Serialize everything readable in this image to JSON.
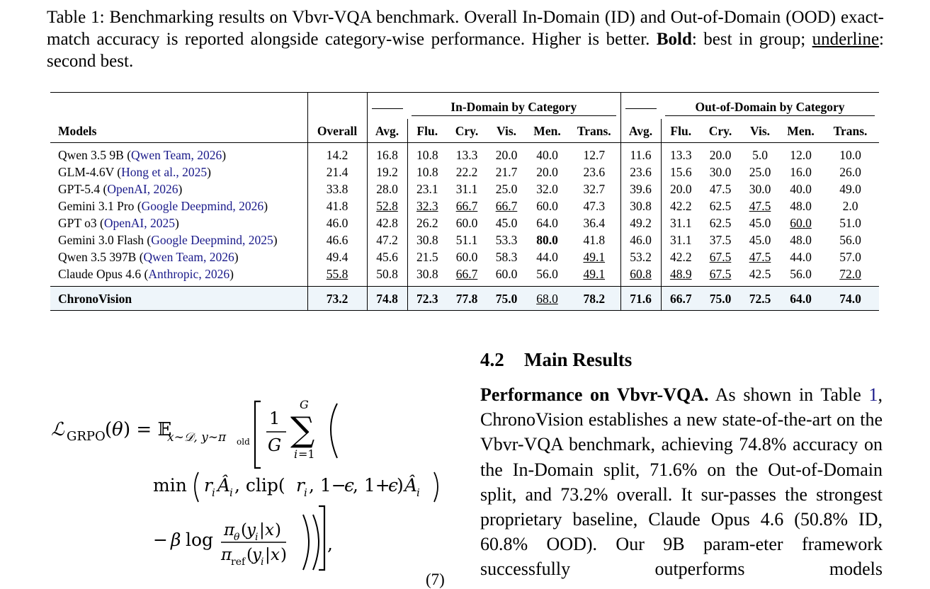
{
  "caption": {
    "lead": "Table 1: Benchmarking results on Vbvr-VQA benchmark. Overall In-Domain (ID) and Out-of-Domain (OOD) exact-match accuracy is reported alongside category-wise performance. Higher is better.",
    "bold_word": "Bold",
    "bold_desc": ": best in group;",
    "underline_word": "underline",
    "underline_desc": ": second best."
  },
  "table": {
    "group_headers": {
      "in_domain": "In-Domain by Category",
      "out_domain": "Out-of-Domain by Category"
    },
    "columns": [
      "Models",
      "Overall",
      "Avg.",
      "Flu.",
      "Cry.",
      "Vis.",
      "Men.",
      "Trans.",
      "Avg.",
      "Flu.",
      "Cry.",
      "Vis.",
      "Men.",
      "Trans."
    ],
    "rows": [
      {
        "name": "Qwen 3.5 9B",
        "cite": "Qwen Team, 2026",
        "values": [
          "14.2",
          "16.8",
          "10.8",
          "13.3",
          "20.0",
          "40.0",
          "12.7",
          "11.6",
          "13.3",
          "20.0",
          "5.0",
          "12.0",
          "10.0"
        ]
      },
      {
        "name": "GLM-4.6V",
        "cite": "Hong et al., 2025",
        "values": [
          "21.4",
          "19.2",
          "10.8",
          "22.2",
          "21.7",
          "20.0",
          "23.6",
          "23.6",
          "15.6",
          "30.0",
          "25.0",
          "16.0",
          "26.0"
        ]
      },
      {
        "name": "GPT-5.4",
        "cite": "OpenAI, 2026",
        "values": [
          "33.8",
          "28.0",
          "23.1",
          "31.1",
          "25.0",
          "32.0",
          "32.7",
          "39.6",
          "20.0",
          "47.5",
          "30.0",
          "40.0",
          "49.0"
        ]
      },
      {
        "name": "Gemini 3.1 Pro",
        "cite": "Google Deepmind, 2026",
        "values": [
          "41.8",
          "52.8",
          "32.3",
          "66.7",
          "66.7",
          "60.0",
          "47.3",
          "30.8",
          "42.2",
          "62.5",
          "47.5",
          "48.0",
          "2.0"
        ]
      },
      {
        "name": "GPT o3",
        "cite": "OpenAI, 2025",
        "values": [
          "46.0",
          "42.8",
          "26.2",
          "60.0",
          "45.0",
          "64.0",
          "36.4",
          "49.2",
          "31.1",
          "62.5",
          "45.0",
          "60.0",
          "51.0"
        ]
      },
      {
        "name": "Gemini 3.0 Flash",
        "cite": "Google Deepmind, 2025",
        "values": [
          "46.6",
          "47.2",
          "30.8",
          "51.1",
          "53.3",
          "80.0",
          "41.8",
          "46.0",
          "31.1",
          "37.5",
          "45.0",
          "48.0",
          "56.0"
        ]
      },
      {
        "name": "Qwen 3.5 397B",
        "cite": "Qwen Team, 2026",
        "values": [
          "49.4",
          "45.6",
          "21.5",
          "60.0",
          "58.3",
          "44.0",
          "49.1",
          "53.2",
          "42.2",
          "67.5",
          "47.5",
          "44.0",
          "57.0"
        ]
      },
      {
        "name": "Claude Opus 4.6",
        "cite": "Anthropic, 2026",
        "values": [
          "55.8",
          "50.8",
          "30.8",
          "66.7",
          "60.0",
          "56.0",
          "49.1",
          "60.8",
          "48.9",
          "67.5",
          "42.5",
          "56.0",
          "72.0"
        ]
      }
    ],
    "ours": {
      "name": "ChronoVision",
      "values": [
        "73.2",
        "74.8",
        "72.3",
        "77.8",
        "75.0",
        "68.0",
        "78.2",
        "71.6",
        "66.7",
        "75.0",
        "72.5",
        "64.0",
        "74.0"
      ]
    }
  },
  "equation": {
    "number": "(7)"
  },
  "section": {
    "number": "4.2",
    "title": "Main Results"
  },
  "paragraph": {
    "heading": "Performance on Vbvr-VQA.",
    "text_a": "As shown in Table",
    "ref": "1",
    "text_b": ", ChronoVision establishes a new state-of-the-art on the Vbvr-VQA benchmark, achieving 74.8% accuracy on the In-Domain split, 71.6% on the Out-of-Domain split, and 73.2% overall. It sur-passes the strongest proprietary baseline, Claude Opus 4.6 (50.8% ID, 60.8% OOD). Our 9B param-eter framework successfully outperforms models"
  }
}
